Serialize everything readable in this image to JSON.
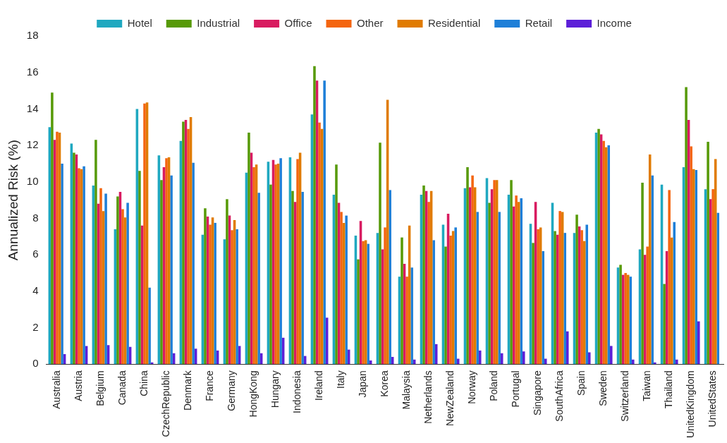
{
  "chart_data": {
    "type": "bar",
    "ylabel": "Annualized Risk (%)",
    "categories": [
      "Australia",
      "Austria",
      "Belgium",
      "Canada",
      "China",
      "CzechRepublic",
      "Denmark",
      "France",
      "Germany",
      "HongKong",
      "Hungary",
      "Indonesia",
      "Ireland",
      "Italy",
      "Japan",
      "Korea",
      "Malaysia",
      "Netherlands",
      "NewZealand",
      "Norway",
      "Poland",
      "Portugal",
      "Singapore",
      "SouthAfrica",
      "Spain",
      "Sweden",
      "Switzerland",
      "Taiwan",
      "Thailand",
      "UnitedKingdom",
      "UnitedStates"
    ],
    "series": [
      {
        "name": "Hotel",
        "color": "#1fa8c0",
        "values": [
          13.0,
          12.1,
          9.8,
          7.4,
          14.0,
          11.45,
          12.25,
          7.1,
          6.85,
          10.5,
          11.1,
          11.35,
          13.7,
          9.3,
          7.05,
          7.2,
          4.8,
          9.3,
          7.65,
          9.65,
          10.2,
          9.3,
          7.7,
          8.85,
          7.2,
          12.7,
          5.3,
          6.3,
          9.85,
          10.8,
          9.6
        ]
      },
      {
        "name": "Industrial",
        "color": "#579a08",
        "values": [
          14.9,
          11.6,
          12.3,
          9.2,
          10.6,
          10.1,
          13.3,
          8.55,
          9.05,
          12.7,
          9.85,
          9.5,
          16.35,
          10.95,
          5.75,
          12.15,
          6.95,
          9.8,
          6.45,
          10.8,
          8.85,
          10.1,
          6.65,
          7.3,
          8.2,
          12.9,
          5.45,
          9.95,
          4.4,
          15.2,
          12.2
        ]
      },
      {
        "name": "Office",
        "color": "#d81b60",
        "values": [
          12.3,
          11.5,
          8.8,
          9.45,
          7.6,
          10.8,
          13.4,
          8.1,
          8.15,
          11.6,
          11.2,
          8.9,
          15.55,
          8.85,
          7.85,
          6.3,
          5.5,
          9.5,
          8.25,
          9.7,
          9.6,
          8.65,
          8.9,
          7.1,
          7.55,
          12.6,
          4.9,
          6.0,
          6.2,
          13.4,
          9.05
        ]
      },
      {
        "name": "Other",
        "color": "#f4650f",
        "values": [
          12.75,
          10.75,
          9.65,
          8.5,
          14.3,
          11.3,
          12.9,
          7.65,
          7.35,
          10.8,
          10.95,
          11.25,
          13.25,
          8.35,
          6.75,
          7.5,
          4.8,
          8.9,
          7.05,
          10.35,
          10.1,
          9.25,
          7.4,
          8.4,
          7.35,
          12.25,
          5.0,
          6.45,
          9.55,
          11.95,
          9.6
        ]
      },
      {
        "name": "Residential",
        "color": "#e07b00",
        "values": [
          12.7,
          10.7,
          8.4,
          8.05,
          14.35,
          11.35,
          13.55,
          8.05,
          7.9,
          10.95,
          11.0,
          11.6,
          12.9,
          7.75,
          6.8,
          14.5,
          7.6,
          9.5,
          7.3,
          9.7,
          10.1,
          8.9,
          7.5,
          8.35,
          6.75,
          11.9,
          4.9,
          11.5,
          6.95,
          10.7,
          11.25
        ]
      },
      {
        "name": "Retail",
        "color": "#1e7fd8",
        "values": [
          11.0,
          10.85,
          9.35,
          8.85,
          4.2,
          10.35,
          11.05,
          7.75,
          7.4,
          9.4,
          11.3,
          9.45,
          15.55,
          8.15,
          6.6,
          9.55,
          5.3,
          6.8,
          7.5,
          8.35,
          8.35,
          9.1,
          6.2,
          7.2,
          7.65,
          12.0,
          4.8,
          10.35,
          7.8,
          10.65,
          8.3
        ]
      },
      {
        "name": "Income",
        "color": "#5c1fd8",
        "values": [
          0.55,
          1.0,
          1.05,
          0.95,
          0.1,
          0.6,
          0.85,
          0.75,
          1.0,
          0.6,
          1.45,
          0.45,
          2.55,
          0.8,
          0.2,
          0.4,
          0.25,
          1.1,
          0.3,
          0.75,
          0.6,
          0.7,
          0.3,
          1.8,
          0.65,
          1.0,
          0.25,
          0.1,
          0.25,
          2.35,
          null
        ]
      }
    ],
    "ylim": [
      0,
      18
    ],
    "yticks": [
      0,
      2,
      4,
      6,
      8,
      10,
      12,
      14,
      16,
      18
    ],
    "grid": false,
    "legend": "top"
  }
}
